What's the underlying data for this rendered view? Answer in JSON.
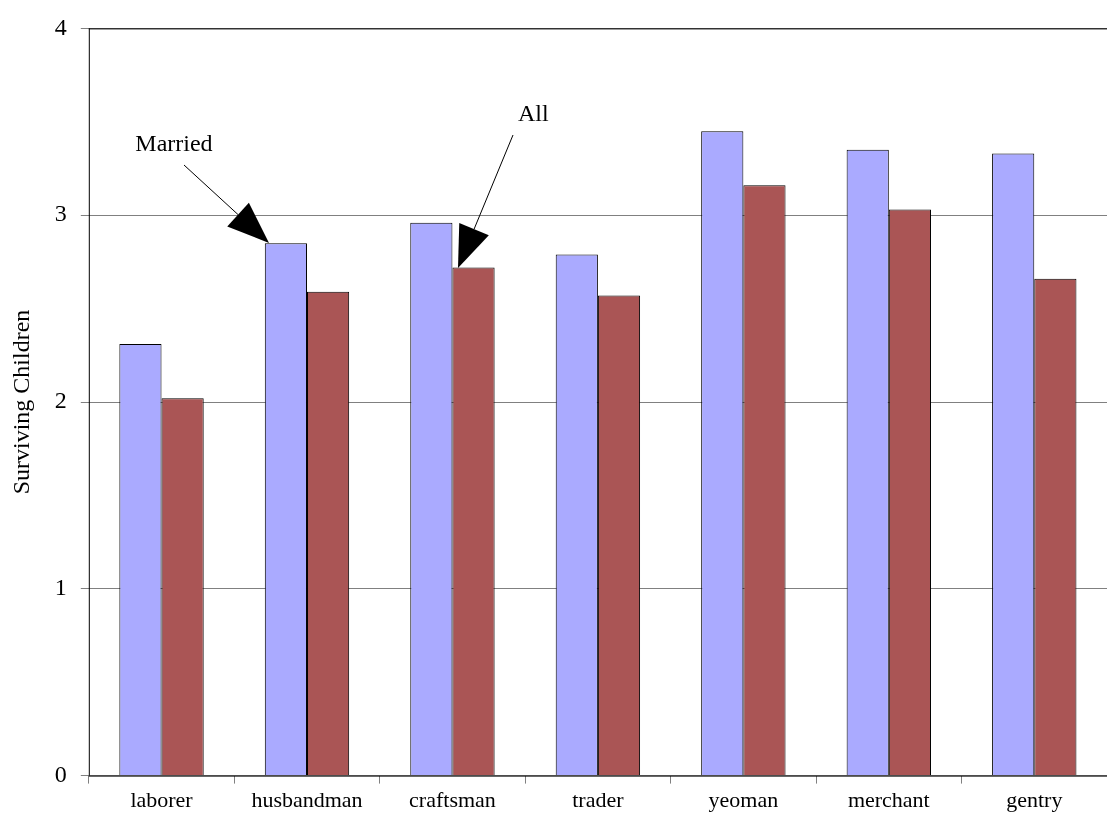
{
  "chart_data": {
    "type": "bar",
    "ylabel": "Surviving Children",
    "categories": [
      "laborer",
      "husbandman",
      "craftsman",
      "trader",
      "yeoman",
      "merchant",
      "gentry"
    ],
    "series": [
      {
        "color": "#aaaaff",
        "values": [
          2.31,
          2.85,
          2.96,
          2.79,
          3.45,
          3.35,
          3.33
        ]
      },
      {
        "color": "#aa5555",
        "values": [
          2.02,
          2.59,
          2.72,
          2.57,
          3.16,
          3.03,
          2.66
        ]
      }
    ],
    "ylim": [
      0,
      4
    ],
    "yticks": [
      0,
      1,
      2,
      3,
      4
    ],
    "grid": "y",
    "legend": false,
    "annotations": [
      "Married",
      "All"
    ]
  }
}
